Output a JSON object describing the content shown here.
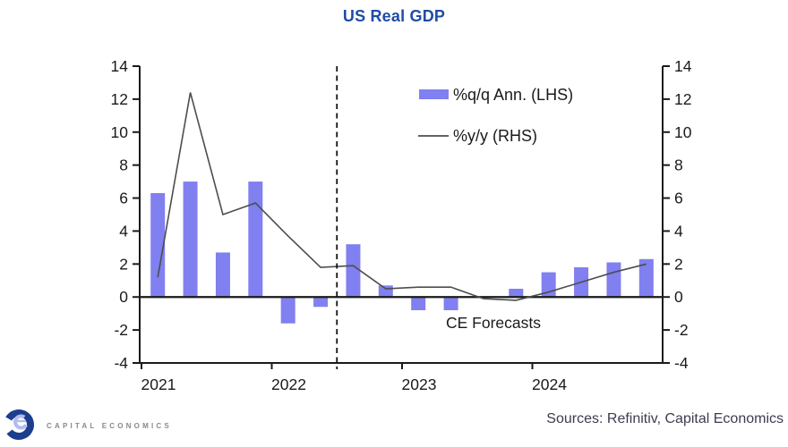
{
  "page": {
    "title_color": "#1F4CA6",
    "background": "#ffffff"
  },
  "chart_data": {
    "type": "combo",
    "title": "US Real GDP",
    "x": [
      "2021 Q1",
      "2021 Q2",
      "2021 Q3",
      "2021 Q4",
      "2022 Q1",
      "2022 Q2",
      "2022 Q3",
      "2022 Q4",
      "2023 Q1",
      "2023 Q2",
      "2023 Q3",
      "2023 Q4",
      "2024 Q1",
      "2024 Q2",
      "2024 Q3",
      "2024 Q4"
    ],
    "series": [
      {
        "name": "%q/q Ann. (LHS)",
        "type": "bar",
        "axis": "left",
        "color": "#8080F0",
        "values": [
          6.3,
          7.0,
          2.7,
          7.0,
          -1.6,
          -0.6,
          3.2,
          0.7,
          -0.8,
          -0.8,
          0.0,
          0.5,
          1.5,
          1.8,
          2.1,
          2.3
        ]
      },
      {
        "name": "%y/y (RHS)",
        "type": "line",
        "axis": "right",
        "color": "#4D4D4D",
        "values": [
          1.2,
          12.4,
          5.0,
          5.7,
          3.7,
          1.8,
          1.9,
          0.5,
          0.6,
          0.6,
          -0.1,
          -0.2,
          0.3,
          0.9,
          1.5,
          2.0
        ]
      }
    ],
    "ylim": [
      -4,
      14
    ],
    "ytick_step": 2,
    "yticks": [
      -4,
      -2,
      0,
      2,
      4,
      6,
      8,
      10,
      12,
      14
    ],
    "year_labels": [
      "2021",
      "2022",
      "2023",
      "2024"
    ],
    "forecast_start_index": 6,
    "annotation": "CE Forecasts",
    "axis_color": "#1a1a1a",
    "grid": false,
    "legend_position": "inside-top-right"
  },
  "footer": {
    "logo_text": "CAPITAL ECONOMICS",
    "sources": "Sources: Refinitiv, Capital Economics",
    "sources_color": "#3C3C50",
    "logo_navy": "#1B3E8E",
    "logo_light": "#B3BCEC"
  }
}
